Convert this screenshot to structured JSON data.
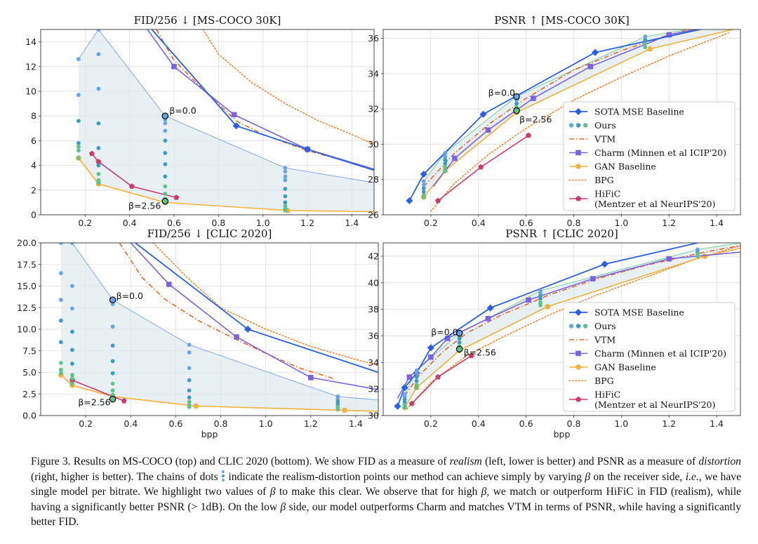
{
  "colors": {
    "sota": "#2b5fe8",
    "ours_chain": [
      "#6aa4e8",
      "#3e9cc0",
      "#5cc48a"
    ],
    "vtm": "#e06a2b",
    "charm": "#7b62e0",
    "gan": "#f2b13a",
    "bpg": "#f0822e",
    "hific": "#cc3b6f",
    "fill": "#dbe8ec"
  },
  "legend": {
    "sota": "SOTA MSE Baseline",
    "ours": "Ours",
    "vtm": "VTM",
    "charm": "Charm (Minnen et al ICIP'20)",
    "gan": "GAN Baseline",
    "bpg": "BPG",
    "hific_line1": "HiFiC",
    "hific_line2": "(Mentzer et al NeurIPS'20)"
  },
  "caption": {
    "fig_label": "Figure 3.",
    "s1": " Results on MS-COCO (top) and CLIC 2020 (bottom). We show FID as a measure of ",
    "realism": "realism",
    "s2": " (left, lower is better) and PSNR as a measure of ",
    "distortion": "distortion",
    "s3": " (right, higher is better). The chains of dots ",
    "s4": " indicate the realism-distortion points our method can achieve simply by varying ",
    "beta": "β",
    "s5": " on the receiver side, ",
    "ie": "i.e.",
    "s6": ", we have single model per bitrate. We highlight two values of ",
    "s7": " to make this clear. We observe that for high ",
    "s8": ", we match or outperform HiFiC in FID (realism), while having a significantly better PSNR (> 1dB). On the low ",
    "s9": " side, our model outperforms Charm and matches VTM in terms of PSNR, while having a significantly better FID."
  },
  "chart_data": [
    {
      "type": "line",
      "title": "FID/256 ↓ [MS-COCO 30K]",
      "xlabel": "",
      "ylabel": "",
      "xlim": [
        0.0,
        1.5
      ],
      "ylim": [
        0,
        15
      ],
      "xticks": [
        0.2,
        0.4,
        0.6,
        0.8,
        1.0,
        1.2,
        1.4
      ],
      "xtick_labels": [
        "0.2",
        "0.4",
        "0.6",
        "0.8",
        "1.0",
        "1.2",
        "1.4"
      ],
      "yticks": [
        0,
        2,
        4,
        6,
        8,
        10,
        12,
        14
      ],
      "ytick_labels": [
        "0",
        "2",
        "4",
        "6",
        "8",
        "10",
        "12",
        "14"
      ],
      "grid": true,
      "legend": false,
      "series": {
        "sota": {
          "x": [
            0.5,
            0.88,
            1.2,
            1.5
          ],
          "y": [
            15.0,
            7.2,
            5.3,
            3.6
          ]
        },
        "vtm": {
          "x": [
            0.52,
            0.6,
            0.75,
            0.88,
            1.0,
            1.2,
            1.4
          ],
          "y": [
            15.0,
            12.5,
            9.8,
            7.6,
            6.5,
            5.2,
            4.2
          ]
        },
        "charm": {
          "x": [
            0.48,
            0.6,
            0.87,
            1.2,
            1.5
          ],
          "y": [
            15.0,
            12.0,
            8.1,
            5.3,
            3.7
          ]
        },
        "bpg": {
          "x": [
            0.73,
            0.8,
            0.95,
            1.1,
            1.25,
            1.4,
            1.5
          ],
          "y": [
            15.0,
            13.0,
            10.7,
            9.0,
            7.6,
            6.5,
            5.7
          ]
        },
        "gan": {
          "x": [
            0.17,
            0.26,
            0.56,
            1.11,
            1.5
          ],
          "y": [
            4.6,
            2.5,
            1.0,
            0.35,
            0.25
          ]
        },
        "hific": {
          "x": [
            0.23,
            0.26,
            0.41,
            0.61
          ],
          "y": [
            4.95,
            4.3,
            2.3,
            1.4
          ]
        },
        "ours_chains": [
          {
            "x": 0.17,
            "y": [
              12.6,
              9.7,
              7.6,
              5.8,
              5.5,
              5.2,
              4.6
            ]
          },
          {
            "x": 0.26,
            "y": [
              15.0,
              13.0,
              10.2,
              7.4,
              5.4,
              4.0,
              3.3,
              2.8,
              2.6
            ]
          },
          {
            "x": 0.56,
            "y": [
              8.0,
              7.7,
              7.4,
              6.8,
              6.0,
              5.0,
              4.1,
              3.1,
              2.3,
              1.7,
              1.3,
              1.1,
              1.0
            ]
          },
          {
            "x": 1.1,
            "y": [
              3.8,
              3.5,
              3.1,
              2.8,
              2.1,
              1.5,
              1.0,
              0.7,
              0.5,
              0.4,
              0.35
            ]
          }
        ],
        "envelope_high_beta": {
          "x": [
            0.17,
            0.26,
            0.56,
            1.1,
            1.5
          ],
          "y": [
            12.6,
            15.0,
            8.0,
            3.8,
            2.6
          ]
        }
      },
      "annotations": [
        {
          "text": "β=0.0",
          "x": 0.56,
          "y": 8.0
        },
        {
          "text": "β=2.56",
          "x": 0.56,
          "y": 1.1
        }
      ]
    },
    {
      "type": "line",
      "title": "PSNR ↑ [MS-COCO 30K]",
      "xlabel": "",
      "ylabel": "",
      "xlim": [
        0.0,
        1.5
      ],
      "ylim": [
        26,
        36.5
      ],
      "xticks": [
        0.2,
        0.4,
        0.6,
        0.8,
        1.0,
        1.2,
        1.4
      ],
      "xtick_labels": [
        "0.2",
        "0.4",
        "0.6",
        "0.8",
        "1.0",
        "1.2",
        "1.4"
      ],
      "yticks": [
        26,
        28,
        30,
        32,
        34,
        36
      ],
      "ytick_labels": [
        "26",
        "28",
        "30",
        "32",
        "34",
        "36"
      ],
      "grid": true,
      "legend": true,
      "legend_position": "center-right",
      "series": {
        "sota": {
          "x": [
            0.11,
            0.17,
            0.42,
            0.89,
            1.5
          ],
          "y": [
            26.8,
            28.3,
            31.7,
            35.2,
            37.0
          ]
        },
        "vtm": {
          "x": [
            0.17,
            0.3,
            0.45,
            0.6,
            0.8,
            1.0,
            1.2,
            1.45
          ],
          "y": [
            27.6,
            29.5,
            31.2,
            32.6,
            34.2,
            35.3,
            36.2,
            37.0
          ]
        },
        "charm": {
          "x": [
            0.21,
            0.3,
            0.44,
            0.63,
            0.87,
            1.2,
            1.5
          ],
          "y": [
            27.6,
            29.2,
            30.8,
            32.6,
            34.4,
            36.2,
            37.0
          ]
        },
        "bpg": {
          "x": [
            0.2,
            0.3,
            0.45,
            0.6,
            0.8,
            1.0,
            1.2,
            1.45
          ],
          "y": [
            26.2,
            27.8,
            29.5,
            30.9,
            32.5,
            33.8,
            35.0,
            36.3
          ]
        },
        "gan": {
          "x": [
            0.17,
            0.26,
            0.56,
            1.12,
            1.5
          ],
          "y": [
            27.0,
            28.5,
            31.8,
            35.4,
            36.6
          ]
        },
        "hific": {
          "x": [
            0.23,
            0.41,
            0.61
          ],
          "y": [
            26.8,
            28.7,
            30.5
          ]
        },
        "ours_chains": [
          {
            "x": 0.17,
            "y": [
              27.9,
              27.7,
              27.5,
              27.3,
              27.1,
              27.0
            ]
          },
          {
            "x": 0.26,
            "y": [
              29.5,
              29.3,
              29.1,
              28.9,
              28.7,
              28.5
            ]
          },
          {
            "x": 0.56,
            "y": [
              32.7,
              32.5,
              32.3,
              32.1,
              31.9
            ]
          },
          {
            "x": 1.1,
            "y": [
              36.1,
              35.9,
              35.7,
              35.5
            ]
          }
        ],
        "envelope_low_beta": {
          "x": [
            0.17,
            0.26,
            0.56,
            1.1,
            1.5
          ],
          "y": [
            27.9,
            29.5,
            32.7,
            36.1,
            37.0
          ]
        }
      },
      "annotations": [
        {
          "text": "β=0.0",
          "x": 0.56,
          "y": 32.7
        },
        {
          "text": "β=2.56",
          "x": 0.56,
          "y": 31.9
        }
      ]
    },
    {
      "type": "line",
      "title": "FID/256 ↓ [CLIC 2020]",
      "xlabel": "bpp",
      "ylabel": "",
      "xlim": [
        0.0,
        1.5
      ],
      "ylim": [
        0,
        20
      ],
      "xticks": [
        0.2,
        0.4,
        0.6,
        0.8,
        1.0,
        1.2,
        1.4
      ],
      "xtick_labels": [
        "0.2",
        "0.4",
        "0.6",
        "0.8",
        "1.0",
        "1.2",
        "1.4"
      ],
      "yticks": [
        0,
        2.5,
        5,
        7.5,
        10,
        12.5,
        15,
        17.5,
        20
      ],
      "ytick_labels": [
        "0.0",
        "2.5",
        "5.0",
        "7.5",
        "10.0",
        "12.5",
        "15.0",
        "17.5",
        "20.0"
      ],
      "grid": true,
      "legend": false,
      "series": {
        "sota": {
          "x": [
            0.42,
            0.92,
            1.5
          ],
          "y": [
            20.0,
            10.0,
            5.0
          ]
        },
        "vtm": {
          "x": [
            0.35,
            0.45,
            0.55,
            0.7,
            0.87,
            1.0,
            1.15,
            1.3
          ],
          "y": [
            20.0,
            16.0,
            13.5,
            11.0,
            8.8,
            7.2,
            5.5,
            4.3
          ]
        },
        "charm": {
          "x": [
            0.4,
            0.57,
            0.87,
            1.2,
            1.5
          ],
          "y": [
            20.0,
            15.2,
            9.1,
            4.4,
            3.0
          ]
        },
        "bpg": {
          "x": [
            0.5,
            0.65,
            0.8,
            1.0,
            1.2,
            1.4,
            1.5
          ],
          "y": [
            20.0,
            16.0,
            12.5,
            10.0,
            8.0,
            6.5,
            5.8
          ]
        },
        "gan": {
          "x": [
            0.09,
            0.14,
            0.32,
            0.69,
            1.35,
            1.5
          ],
          "y": [
            4.7,
            3.5,
            2.2,
            1.1,
            0.6,
            0.5
          ]
        },
        "hific": {
          "x": [
            0.14,
            0.37
          ],
          "y": [
            4.1,
            1.7
          ]
        },
        "ours_chains": [
          {
            "x": 0.09,
            "y": [
              20.0,
              16.5,
              13.4,
              11.0,
              8.5,
              6.1,
              5.3,
              4.9
            ]
          },
          {
            "x": 0.14,
            "y": [
              20.0,
              15.0,
              12.4,
              9.7,
              7.6,
              6.0,
              4.7,
              4.3,
              3.7
            ]
          },
          {
            "x": 0.32,
            "y": [
              13.4,
              12.9,
              10.3,
              8.1,
              6.3,
              4.9,
              3.7,
              2.9,
              2.4,
              1.9
            ]
          },
          {
            "x": 0.66,
            "y": [
              8.2,
              7.3,
              5.5,
              4.1,
              2.9,
              2.1,
              1.6,
              1.2,
              1.0
            ]
          },
          {
            "x": 1.32,
            "y": [
              2.2,
              1.9,
              1.6,
              1.3,
              1.0,
              0.8,
              0.7
            ]
          }
        ],
        "envelope_high_beta": {
          "x": [
            0.09,
            0.14,
            0.32,
            0.66,
            1.32,
            1.5
          ],
          "y": [
            20.0,
            20.0,
            13.4,
            8.2,
            2.2,
            1.8
          ]
        }
      },
      "annotations": [
        {
          "text": "β=0.0",
          "x": 0.32,
          "y": 13.4
        },
        {
          "text": "β=2.56",
          "x": 0.32,
          "y": 1.9
        }
      ]
    },
    {
      "type": "line",
      "title": "PSNR ↑ [CLIC 2020]",
      "xlabel": "bpp",
      "ylabel": "",
      "xlim": [
        0.0,
        1.5
      ],
      "ylim": [
        30,
        43
      ],
      "xticks": [
        0.2,
        0.4,
        0.6,
        0.8,
        1.0,
        1.2,
        1.4
      ],
      "xtick_labels": [
        "0.2",
        "0.4",
        "0.6",
        "0.8",
        "1.0",
        "1.2",
        "1.4"
      ],
      "yticks": [
        30,
        32,
        34,
        36,
        38,
        40,
        42
      ],
      "ytick_labels": [
        "30",
        "32",
        "34",
        "36",
        "38",
        "40",
        "42"
      ],
      "grid": true,
      "legend": true,
      "legend_position": "center-right",
      "series": {
        "sota": {
          "x": [
            0.06,
            0.09,
            0.14,
            0.2,
            0.45,
            0.93,
            1.32
          ],
          "y": [
            30.7,
            32.1,
            33.2,
            35.1,
            38.1,
            41.4,
            43.0
          ]
        },
        "vtm": {
          "x": [
            0.09,
            0.15,
            0.25,
            0.35,
            0.5,
            0.7,
            0.9,
            1.1,
            1.35,
            1.5
          ],
          "y": [
            31.5,
            33.0,
            34.8,
            36.2,
            37.6,
            39.1,
            40.3,
            41.3,
            42.3,
            42.8
          ]
        },
        "charm": {
          "x": [
            0.06,
            0.11,
            0.2,
            0.27,
            0.44,
            0.61,
            0.88,
            1.2,
            1.5
          ],
          "y": [
            31.3,
            32.9,
            34.4,
            35.8,
            37.3,
            38.7,
            40.3,
            41.8,
            42.3
          ]
        },
        "bpg": {
          "x": [
            0.1,
            0.2,
            0.35,
            0.5,
            0.7,
            0.9,
            1.1,
            1.3,
            1.5
          ],
          "y": [
            30.5,
            32.5,
            34.5,
            35.9,
            37.6,
            39.1,
            40.4,
            41.7,
            42.8
          ]
        },
        "gan": {
          "x": [
            0.09,
            0.14,
            0.32,
            0.69,
            1.35,
            1.5
          ],
          "y": [
            30.6,
            32.1,
            34.9,
            38.2,
            42.0,
            42.6
          ]
        },
        "hific": {
          "x": [
            0.12,
            0.23,
            0.37
          ],
          "y": [
            30.9,
            32.9,
            34.5
          ]
        },
        "ours_chains": [
          {
            "x": 0.09,
            "y": [
              31.6,
              31.4,
              31.2,
              31.0,
              30.8,
              30.6
            ]
          },
          {
            "x": 0.14,
            "y": [
              33.4,
              33.2,
              32.9,
              32.6,
              32.3,
              32.1
            ]
          },
          {
            "x": 0.32,
            "y": [
              36.2,
              36.0,
              35.8,
              35.5,
              35.2,
              35.0
            ]
          },
          {
            "x": 0.66,
            "y": [
              39.4,
              39.2,
              39.0,
              38.8,
              38.5,
              38.3
            ]
          },
          {
            "x": 1.32,
            "y": [
              42.5,
              42.3,
              42.2,
              42.0
            ]
          }
        ],
        "envelope_low_beta": {
          "x": [
            0.09,
            0.14,
            0.32,
            0.66,
            1.32,
            1.5
          ],
          "y": [
            31.6,
            33.4,
            36.2,
            39.4,
            42.5,
            43.0
          ]
        }
      },
      "annotations": [
        {
          "text": "β=0.0",
          "x": 0.32,
          "y": 36.2
        },
        {
          "text": "β=2.56",
          "x": 0.32,
          "y": 35.0
        }
      ]
    }
  ]
}
